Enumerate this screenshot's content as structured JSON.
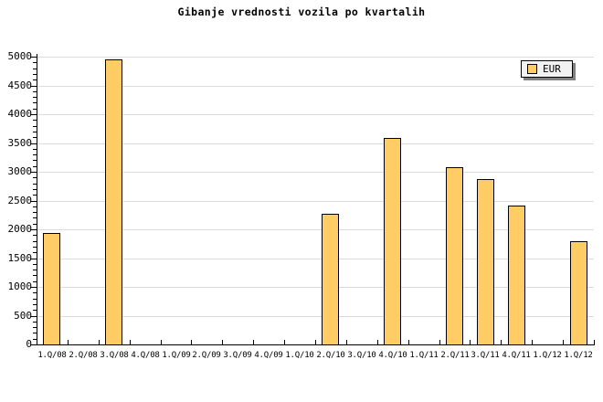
{
  "chart_data": {
    "type": "bar",
    "title": "Gibanje vrednosti vozila po kvartalih",
    "categories": [
      "1.Q/08",
      "2.Q/08",
      "3.Q/08",
      "4.Q/08",
      "1.Q/09",
      "2.Q/09",
      "3.Q/09",
      "4.Q/09",
      "1.Q/10",
      "2.Q/10",
      "3.Q/10",
      "4.Q/10",
      "1.Q/11",
      "2.Q/11",
      "3.Q/11",
      "4.Q/11",
      "1.Q/12",
      "1.Q/12"
    ],
    "series": [
      {
        "name": "EUR",
        "values": [
          1940,
          null,
          4950,
          null,
          null,
          null,
          null,
          null,
          null,
          2270,
          null,
          3590,
          null,
          3080,
          2870,
          2420,
          null,
          1790
        ]
      }
    ],
    "xlabel": "",
    "ylabel": "",
    "ylim": [
      0,
      5000
    ],
    "ytick_step": 500,
    "yminor_step": 100,
    "ytick_labels": [
      "0",
      "500",
      "1000",
      "1500",
      "2000",
      "2500",
      "3000",
      "3500",
      "4000",
      "4500",
      "5000"
    ],
    "grid": "horizontal",
    "legend": {
      "label": "EUR",
      "position": "top-right"
    }
  },
  "colors": {
    "background": "#FFFFFF",
    "bar_fill": "#FFCC66",
    "bar_border": "#000000",
    "gridline": "#DCDCDC",
    "axis": "#000000",
    "text": "#000000",
    "legend_bg": "#F2F2F2",
    "legend_border": "#000000",
    "legend_shadow": "#808080"
  }
}
